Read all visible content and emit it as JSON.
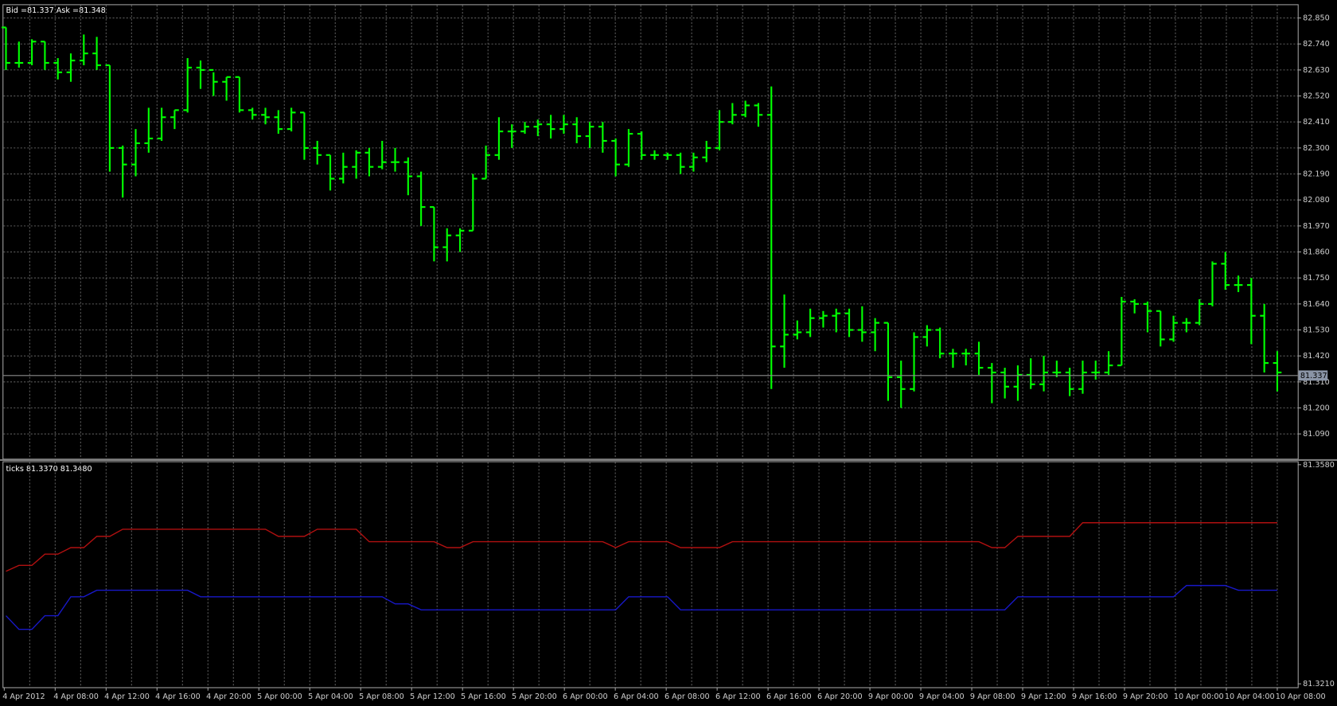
{
  "chart_data": [
    {
      "type": "ohlc",
      "title": "Bid =81.337   Ask =81.348",
      "color": "#00ff00",
      "grid": true,
      "ylim": [
        80.985,
        82.908
      ],
      "yticks": [
        {
          "value": 82.85,
          "label": "82.850"
        },
        {
          "value": 82.74,
          "label": "82.740"
        },
        {
          "value": 82.63,
          "label": "82.630"
        },
        {
          "value": 82.52,
          "label": "82.520"
        },
        {
          "value": 82.41,
          "label": "82.410"
        },
        {
          "value": 82.3,
          "label": "82.300"
        },
        {
          "value": 82.19,
          "label": "82.190"
        },
        {
          "value": 82.08,
          "label": "82.080"
        },
        {
          "value": 81.97,
          "label": "81.970"
        },
        {
          "value": 81.86,
          "label": "81.860"
        },
        {
          "value": 81.75,
          "label": "81.750"
        },
        {
          "value": 81.64,
          "label": "81.640"
        },
        {
          "value": 81.53,
          "label": "81.530"
        },
        {
          "value": 81.42,
          "label": "81.420"
        },
        {
          "value": 81.31,
          "label": "81.310"
        },
        {
          "value": 81.2,
          "label": "81.200"
        },
        {
          "value": 81.09,
          "label": "81.090"
        }
      ],
      "current_price": 81.337,
      "open": [
        82.81,
        82.66,
        82.66,
        82.75,
        82.66,
        82.62,
        82.67,
        82.7,
        82.65,
        82.3,
        82.23,
        82.32,
        82.34,
        82.43,
        82.46,
        82.64,
        82.63,
        82.58,
        82.6,
        82.46,
        82.44,
        82.43,
        82.38,
        82.45,
        82.3,
        82.27,
        82.17,
        82.22,
        82.28,
        82.22,
        82.24,
        82.24,
        82.18,
        82.05,
        81.88,
        81.93,
        81.95,
        82.17,
        82.27,
        82.37,
        82.37,
        82.39,
        82.4,
        82.38,
        82.4,
        82.35,
        82.39,
        82.33,
        82.23,
        82.36,
        82.27,
        82.27,
        82.27,
        82.22,
        82.26,
        82.3,
        82.41,
        82.44,
        82.48,
        82.44,
        81.46,
        81.51,
        81.52,
        81.58,
        81.59,
        81.6,
        81.53,
        81.52,
        81.56,
        81.33,
        81.28,
        81.5,
        81.53,
        81.43,
        81.43,
        81.43,
        81.37,
        81.35,
        81.29,
        81.34,
        81.3,
        81.35,
        81.35,
        81.28,
        81.35,
        81.35,
        81.38,
        81.65,
        81.64,
        81.61,
        81.49,
        81.56,
        81.56,
        81.64,
        81.81,
        81.72,
        81.72,
        81.59,
        81.39
      ],
      "high": [
        82.81,
        82.75,
        82.76,
        82.75,
        82.68,
        82.7,
        82.78,
        82.77,
        82.65,
        82.31,
        82.38,
        82.47,
        82.47,
        82.46,
        82.68,
        82.67,
        82.62,
        82.6,
        82.6,
        82.47,
        82.47,
        82.46,
        82.47,
        82.45,
        82.33,
        82.27,
        82.28,
        82.29,
        82.3,
        82.33,
        82.3,
        82.26,
        82.2,
        82.05,
        81.96,
        81.96,
        82.19,
        82.31,
        82.43,
        82.4,
        82.41,
        82.42,
        82.44,
        82.44,
        82.43,
        82.41,
        82.41,
        82.34,
        82.38,
        82.37,
        82.29,
        82.28,
        82.28,
        82.28,
        82.33,
        82.46,
        82.49,
        82.5,
        82.49,
        82.56,
        81.68,
        81.57,
        81.62,
        81.61,
        81.62,
        81.62,
        81.63,
        81.58,
        81.56,
        81.4,
        81.52,
        81.55,
        81.54,
        81.45,
        81.45,
        81.48,
        81.39,
        81.37,
        81.38,
        81.41,
        81.42,
        81.4,
        81.37,
        81.4,
        81.4,
        81.44,
        81.67,
        81.66,
        81.65,
        81.61,
        81.59,
        81.58,
        81.66,
        81.82,
        81.86,
        81.76,
        81.75,
        81.64,
        81.44
      ],
      "low": [
        82.63,
        82.64,
        82.65,
        82.63,
        82.59,
        82.58,
        82.65,
        82.63,
        82.2,
        82.09,
        82.18,
        82.28,
        82.33,
        82.38,
        82.45,
        82.55,
        82.52,
        82.5,
        82.45,
        82.42,
        82.4,
        82.36,
        82.37,
        82.25,
        82.23,
        82.12,
        82.15,
        82.17,
        82.18,
        82.21,
        82.2,
        82.1,
        81.97,
        81.82,
        81.82,
        81.86,
        81.95,
        82.17,
        82.25,
        82.3,
        82.36,
        82.35,
        82.34,
        82.36,
        82.32,
        82.3,
        82.28,
        82.18,
        82.22,
        82.25,
        82.25,
        82.25,
        82.19,
        82.2,
        82.24,
        82.29,
        82.4,
        82.43,
        82.39,
        81.28,
        81.37,
        81.49,
        81.5,
        81.54,
        81.52,
        81.5,
        81.48,
        81.44,
        81.23,
        81.2,
        81.27,
        81.46,
        81.41,
        81.37,
        81.38,
        81.34,
        81.22,
        81.24,
        81.23,
        81.28,
        81.27,
        81.33,
        81.25,
        81.26,
        81.32,
        81.34,
        81.38,
        81.6,
        81.52,
        81.46,
        81.48,
        81.52,
        81.55,
        81.63,
        81.7,
        81.69,
        81.47,
        81.35,
        81.27
      ],
      "close": [
        82.66,
        82.66,
        82.75,
        82.66,
        82.62,
        82.67,
        82.7,
        82.65,
        82.3,
        82.23,
        82.32,
        82.34,
        82.43,
        82.46,
        82.64,
        82.63,
        82.58,
        82.6,
        82.46,
        82.44,
        82.43,
        82.38,
        82.45,
        82.3,
        82.27,
        82.17,
        82.22,
        82.28,
        82.22,
        82.24,
        82.24,
        82.18,
        82.05,
        81.88,
        81.93,
        81.95,
        82.17,
        82.27,
        82.37,
        82.37,
        82.39,
        82.4,
        82.38,
        82.4,
        82.35,
        82.39,
        82.33,
        82.23,
        82.36,
        82.27,
        82.27,
        82.27,
        82.22,
        82.26,
        82.3,
        82.41,
        82.44,
        82.48,
        82.44,
        81.46,
        81.51,
        81.52,
        81.58,
        81.59,
        81.6,
        81.53,
        81.52,
        81.56,
        81.33,
        81.28,
        81.5,
        81.53,
        81.43,
        81.43,
        81.43,
        81.37,
        81.35,
        81.29,
        81.34,
        81.3,
        81.35,
        81.35,
        81.28,
        81.35,
        81.35,
        81.38,
        81.65,
        81.64,
        81.61,
        81.49,
        81.56,
        81.56,
        81.64,
        81.81,
        81.72,
        81.72,
        81.59,
        81.39,
        81.35
      ]
    },
    {
      "type": "line",
      "title": "ticks 81.3370 81.3480",
      "grid": true,
      "ylim": [
        81.321,
        81.358
      ],
      "yticks": [
        {
          "value": 81.358,
          "label": "81.3580"
        },
        {
          "value": 81.321,
          "label": "81.3210"
        }
      ],
      "x_labels": [
        "4 Apr 2012",
        "4 Apr 08:00",
        "4 Apr 12:00",
        "4 Apr 16:00",
        "4 Apr 20:00",
        "5 Apr 00:00",
        "5 Apr 04:00",
        "5 Apr 08:00",
        "5 Apr 12:00",
        "5 Apr 16:00",
        "5 Apr 20:00",
        "6 Apr 00:00",
        "6 Apr 04:00",
        "6 Apr 08:00",
        "6 Apr 12:00",
        "6 Apr 16:00",
        "6 Apr 20:00",
        "9 Apr 00:00",
        "9 Apr 04:00",
        "9 Apr 08:00",
        "9 Apr 12:00",
        "9 Apr 16:00",
        "9 Apr 20:00",
        "10 Apr 00:00",
        "10 Apr 04:00",
        "10 Apr 08:00"
      ],
      "series": [
        {
          "color": "#b01010",
          "values": [
            81.34,
            81.341,
            81.341,
            81.3429,
            81.3429,
            81.344,
            81.344,
            81.3459,
            81.3459,
            81.3471,
            81.3471,
            81.3471,
            81.3471,
            81.3471,
            81.3471,
            81.3471,
            81.3471,
            81.3471,
            81.3471,
            81.3471,
            81.3471,
            81.3459,
            81.3459,
            81.3459,
            81.3471,
            81.3471,
            81.3471,
            81.3471,
            81.345,
            81.345,
            81.345,
            81.345,
            81.345,
            81.345,
            81.344,
            81.344,
            81.345,
            81.345,
            81.345,
            81.345,
            81.345,
            81.345,
            81.345,
            81.345,
            81.345,
            81.345,
            81.345,
            81.344,
            81.345,
            81.345,
            81.345,
            81.345,
            81.344,
            81.344,
            81.344,
            81.344,
            81.345,
            81.345,
            81.345,
            81.345,
            81.345,
            81.345,
            81.345,
            81.345,
            81.345,
            81.345,
            81.345,
            81.345,
            81.345,
            81.345,
            81.345,
            81.345,
            81.345,
            81.345,
            81.345,
            81.345,
            81.344,
            81.344,
            81.3459,
            81.3459,
            81.3459,
            81.3459,
            81.3459,
            81.3482,
            81.3482,
            81.3482,
            81.3482,
            81.3482,
            81.3482,
            81.3482,
            81.3482,
            81.3482,
            81.3482,
            81.3482,
            81.3482,
            81.3482,
            81.3482,
            81.3482,
            81.3482
          ]
        },
        {
          "color": "#1818c8",
          "values": [
            81.3325,
            81.3302,
            81.3302,
            81.3325,
            81.3325,
            81.3357,
            81.3357,
            81.3368,
            81.3368,
            81.3368,
            81.3368,
            81.3368,
            81.3368,
            81.3368,
            81.3368,
            81.3357,
            81.3357,
            81.3357,
            81.3357,
            81.3357,
            81.3357,
            81.3357,
            81.3357,
            81.3357,
            81.3357,
            81.3357,
            81.3357,
            81.3357,
            81.3357,
            81.3357,
            81.3345,
            81.3345,
            81.3335,
            81.3335,
            81.3335,
            81.3335,
            81.3335,
            81.3335,
            81.3335,
            81.3335,
            81.3335,
            81.3335,
            81.3335,
            81.3335,
            81.3335,
            81.3335,
            81.3335,
            81.3335,
            81.3357,
            81.3357,
            81.3357,
            81.3357,
            81.3335,
            81.3335,
            81.3335,
            81.3335,
            81.3335,
            81.3335,
            81.3335,
            81.3335,
            81.3335,
            81.3335,
            81.3335,
            81.3335,
            81.3335,
            81.3335,
            81.3335,
            81.3335,
            81.3335,
            81.3335,
            81.3335,
            81.3335,
            81.3335,
            81.3335,
            81.3335,
            81.3335,
            81.3335,
            81.3335,
            81.3357,
            81.3357,
            81.3357,
            81.3357,
            81.3357,
            81.3357,
            81.3357,
            81.3357,
            81.3357,
            81.3357,
            81.3357,
            81.3357,
            81.3357,
            81.3376,
            81.3376,
            81.3376,
            81.3376,
            81.3368,
            81.3368,
            81.3368,
            81.3368
          ]
        }
      ]
    }
  ]
}
